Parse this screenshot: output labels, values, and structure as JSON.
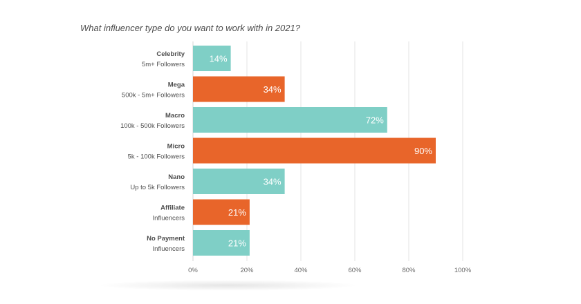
{
  "chart_data": {
    "type": "bar",
    "orientation": "horizontal",
    "title": "What influencer type do you want to work with in 2021?",
    "categories": [
      {
        "name": "Celebrity",
        "sub": "5m+ Followers",
        "value": 14,
        "label": "14%",
        "color": "#7fcfc6"
      },
      {
        "name": "Mega",
        "sub": "500k - 5m+ Followers",
        "value": 34,
        "label": "34%",
        "color": "#e8652a"
      },
      {
        "name": "Macro",
        "sub": "100k - 500k Followers",
        "value": 72,
        "label": "72%",
        "color": "#7fcfc6"
      },
      {
        "name": "Micro",
        "sub": "5k - 100k Followers",
        "value": 90,
        "label": "90%",
        "color": "#e8652a"
      },
      {
        "name": "Nano",
        "sub": "Up to 5k Followers",
        "value": 34,
        "label": "34%",
        "color": "#7fcfc6"
      },
      {
        "name": "Affiliate",
        "sub": "Influencers",
        "value": 21,
        "label": "21%",
        "color": "#e8652a"
      },
      {
        "name": "No Payment",
        "sub": "Influencers",
        "value": 21,
        "label": "21%",
        "color": "#7fcfc6"
      }
    ],
    "xlim": [
      0,
      100
    ],
    "xticks": [
      "0%",
      "20%",
      "40%",
      "60%",
      "80%",
      "100%"
    ],
    "grid": true,
    "legend": "none"
  }
}
